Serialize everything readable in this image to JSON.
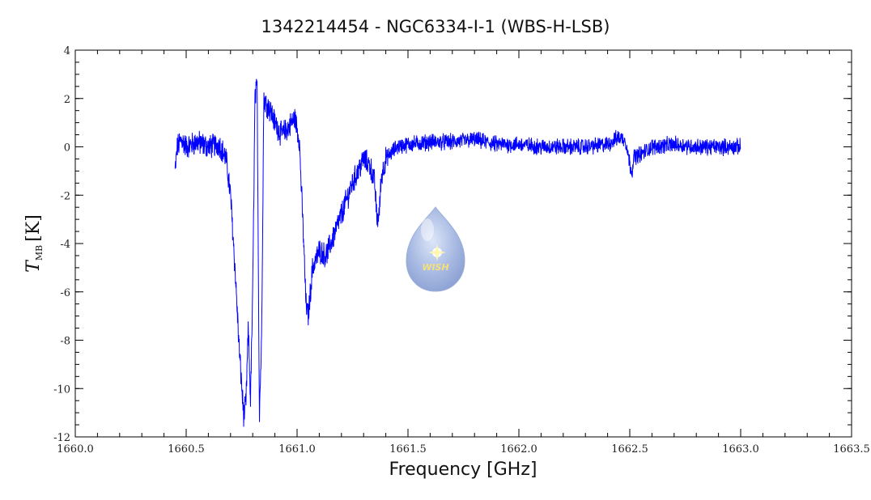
{
  "chart_data": {
    "type": "line",
    "title": "1342214454 - NGC6334-I-1 (WBS-H-LSB)",
    "xlabel": "Frequency [GHz]",
    "ylabel": {
      "symbol": "T",
      "subscript": "MB",
      "unit": "[K]"
    },
    "xlim": [
      1660.0,
      1663.5
    ],
    "ylim": [
      -12,
      4
    ],
    "xticks": [
      "1660.0",
      "1660.5",
      "1661.0",
      "1661.5",
      "1662.0",
      "1662.5",
      "1663.0",
      "1663.5"
    ],
    "xtick_values": [
      1660.0,
      1660.5,
      1661.0,
      1661.5,
      1662.0,
      1662.5,
      1663.0,
      1663.5
    ],
    "yticks": [
      "-12",
      "-10",
      "-8",
      "-6",
      "-4",
      "-2",
      "0",
      "2",
      "4"
    ],
    "ytick_values": [
      -12,
      -10,
      -8,
      -6,
      -4,
      -2,
      0,
      2,
      4
    ],
    "grid": false,
    "series": [
      {
        "color": "#0000ff",
        "x": [
          1660.45,
          1660.46,
          1660.48,
          1660.5,
          1660.55,
          1660.6,
          1660.65,
          1660.68,
          1660.7,
          1660.72,
          1660.74,
          1660.76,
          1660.77,
          1660.78,
          1660.79,
          1660.8,
          1660.81,
          1660.82,
          1660.83,
          1660.84,
          1660.85,
          1660.86,
          1660.88,
          1660.9,
          1660.93,
          1660.96,
          1660.99,
          1661.01,
          1661.03,
          1661.04,
          1661.05,
          1661.07,
          1661.1,
          1661.13,
          1661.16,
          1661.2,
          1661.25,
          1661.3,
          1661.33,
          1661.35,
          1661.36,
          1661.37,
          1661.38,
          1661.4,
          1661.45,
          1661.5,
          1661.6,
          1661.7,
          1661.8,
          1661.9,
          1662.0,
          1662.1,
          1662.2,
          1662.3,
          1662.4,
          1662.45,
          1662.48,
          1662.5,
          1662.51,
          1662.52,
          1662.55,
          1662.6,
          1662.7,
          1662.8,
          1662.9,
          1663.0
        ],
        "y": [
          -1.0,
          0.0,
          0.3,
          0.0,
          0.2,
          0.0,
          0.1,
          -0.5,
          -2.0,
          -5.0,
          -8.5,
          -11.2,
          -10.5,
          -7.5,
          -10.5,
          -6.0,
          2.0,
          2.5,
          -11.0,
          -8.0,
          2.0,
          1.8,
          1.5,
          1.0,
          0.5,
          0.8,
          1.2,
          0.3,
          -4.0,
          -6.5,
          -7.0,
          -5.0,
          -4.3,
          -4.5,
          -3.8,
          -2.8,
          -1.5,
          -0.5,
          -0.8,
          -1.5,
          -3.0,
          -2.8,
          -1.2,
          -0.5,
          0.0,
          0.1,
          0.2,
          0.2,
          0.3,
          0.1,
          0.1,
          0.0,
          0.0,
          0.0,
          0.1,
          0.4,
          0.3,
          -0.7,
          -1.0,
          -0.4,
          -0.3,
          0.0,
          0.1,
          0.0,
          0.0,
          0.0
        ]
      }
    ]
  },
  "logo": {
    "text": "WISH"
  }
}
